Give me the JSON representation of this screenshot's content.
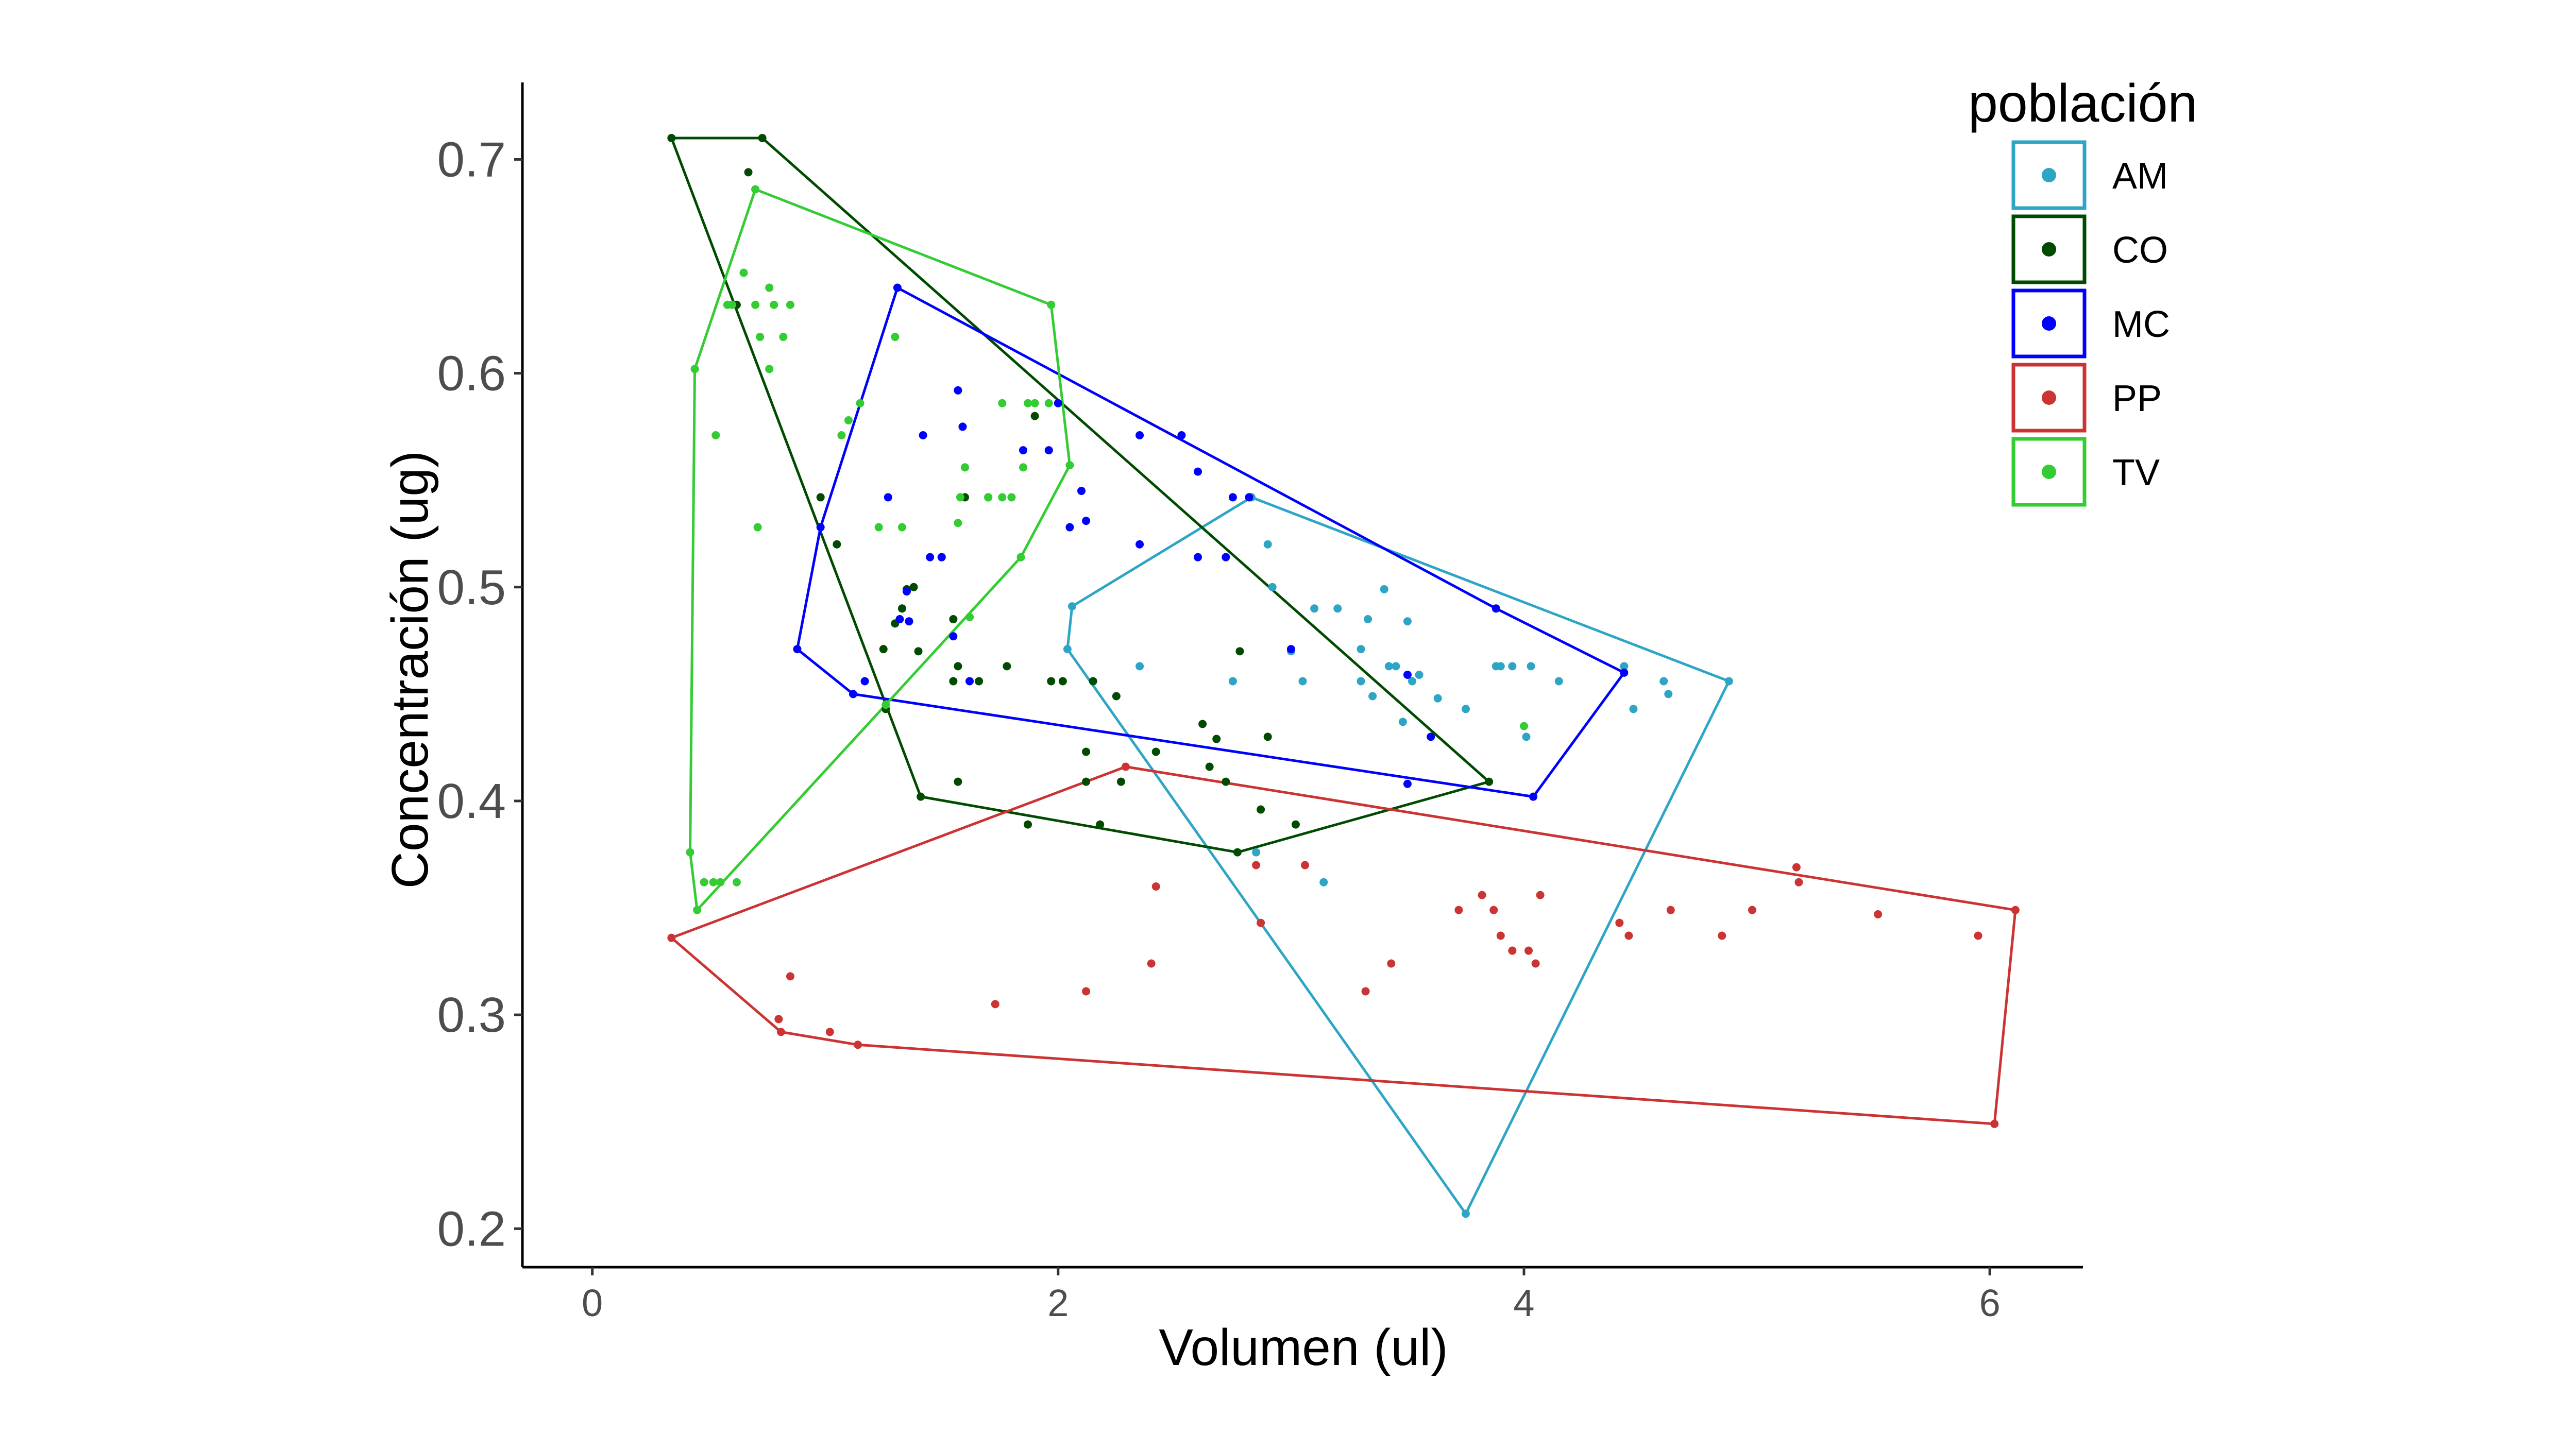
{
  "chart_data": {
    "type": "scatter",
    "xlabel": "Volumen (ul)",
    "ylabel": "Concentración (ug)",
    "xlim": [
      -0.3,
      6.4
    ],
    "ylim": [
      0.182,
      0.736
    ],
    "x_ticks": [
      0,
      2,
      4,
      6
    ],
    "x_tick_labels": [
      "0",
      "2",
      "4",
      "6"
    ],
    "y_ticks": [
      0.2,
      0.3,
      0.4,
      0.5,
      0.6,
      0.7
    ],
    "y_tick_labels": [
      "0.2",
      "0.3",
      "0.4",
      "0.5",
      "0.6",
      "0.7"
    ],
    "grid": false,
    "legend": {
      "title": "población",
      "position": "top-right"
    },
    "series": [
      {
        "name": "AM",
        "color": "#2fa5c6",
        "hull": [
          [
            3.75,
            0.207
          ],
          [
            4.88,
            0.456
          ],
          [
            2.83,
            0.542
          ],
          [
            2.06,
            0.491
          ],
          [
            2.04,
            0.471
          ]
        ],
        "points": [
          [
            3.75,
            0.207
          ],
          [
            4.88,
            0.456
          ],
          [
            2.83,
            0.542
          ],
          [
            2.06,
            0.491
          ],
          [
            2.04,
            0.471
          ],
          [
            2.9,
            0.52
          ],
          [
            2.92,
            0.5
          ],
          [
            3.1,
            0.49
          ],
          [
            3.2,
            0.49
          ],
          [
            3.4,
            0.499
          ],
          [
            3.33,
            0.485
          ],
          [
            3.5,
            0.484
          ],
          [
            3.42,
            0.463
          ],
          [
            3.45,
            0.463
          ],
          [
            3.52,
            0.456
          ],
          [
            3.55,
            0.459
          ],
          [
            3.63,
            0.448
          ],
          [
            3.75,
            0.443
          ],
          [
            3.9,
            0.463
          ],
          [
            3.95,
            0.463
          ],
          [
            4.03,
            0.463
          ],
          [
            3.3,
            0.471
          ],
          [
            3.3,
            0.456
          ],
          [
            3.35,
            0.449
          ],
          [
            3.48,
            0.437
          ],
          [
            4.43,
            0.463
          ],
          [
            4.47,
            0.443
          ],
          [
            4.6,
            0.456
          ],
          [
            4.62,
            0.45
          ],
          [
            4.01,
            0.43
          ],
          [
            2.75,
            0.456
          ],
          [
            2.35,
            0.463
          ],
          [
            3.05,
            0.456
          ],
          [
            3.0,
            0.47
          ],
          [
            2.85,
            0.376
          ],
          [
            3.14,
            0.362
          ],
          [
            3.88,
            0.463
          ],
          [
            4.15,
            0.456
          ]
        ]
      },
      {
        "name": "CO",
        "color": "#004b00",
        "hull": [
          [
            0.34,
            0.71
          ],
          [
            0.73,
            0.71
          ],
          [
            3.85,
            0.409
          ],
          [
            2.77,
            0.376
          ],
          [
            1.41,
            0.402
          ]
        ],
        "points": [
          [
            0.34,
            0.71
          ],
          [
            0.73,
            0.71
          ],
          [
            3.85,
            0.409
          ],
          [
            2.77,
            0.376
          ],
          [
            1.41,
            0.402
          ],
          [
            0.67,
            0.694
          ],
          [
            0.62,
            0.632
          ],
          [
            0.98,
            0.542
          ],
          [
            1.05,
            0.52
          ],
          [
            1.25,
            0.471
          ],
          [
            1.3,
            0.483
          ],
          [
            1.33,
            0.49
          ],
          [
            1.35,
            0.499
          ],
          [
            1.38,
            0.5
          ],
          [
            1.4,
            0.47
          ],
          [
            1.5,
            0.514
          ],
          [
            1.55,
            0.485
          ],
          [
            1.57,
            0.463
          ],
          [
            1.6,
            0.542
          ],
          [
            1.7,
            0.542
          ],
          [
            1.78,
            0.463
          ],
          [
            1.55,
            0.456
          ],
          [
            1.66,
            0.456
          ],
          [
            1.97,
            0.456
          ],
          [
            2.02,
            0.456
          ],
          [
            2.15,
            0.456
          ],
          [
            2.25,
            0.449
          ],
          [
            2.12,
            0.423
          ],
          [
            2.12,
            0.409
          ],
          [
            2.27,
            0.409
          ],
          [
            2.42,
            0.423
          ],
          [
            2.62,
            0.436
          ],
          [
            2.68,
            0.429
          ],
          [
            2.65,
            0.416
          ],
          [
            2.72,
            0.409
          ],
          [
            2.87,
            0.396
          ],
          [
            2.9,
            0.43
          ],
          [
            3.02,
            0.389
          ],
          [
            1.87,
            0.389
          ],
          [
            2.18,
            0.389
          ],
          [
            1.57,
            0.409
          ],
          [
            1.26,
            0.443
          ],
          [
            2.78,
            0.47
          ],
          [
            1.9,
            0.58
          ]
        ]
      },
      {
        "name": "MC",
        "color": "#0000ff",
        "hull": [
          [
            1.31,
            0.64
          ],
          [
            3.88,
            0.49
          ],
          [
            4.43,
            0.46
          ],
          [
            4.04,
            0.402
          ],
          [
            1.12,
            0.45
          ],
          [
            0.88,
            0.471
          ],
          [
            0.98,
            0.528
          ]
        ],
        "points": [
          [
            1.31,
            0.64
          ],
          [
            3.88,
            0.49
          ],
          [
            4.43,
            0.46
          ],
          [
            4.04,
            0.402
          ],
          [
            1.12,
            0.45
          ],
          [
            0.88,
            0.471
          ],
          [
            0.98,
            0.528
          ],
          [
            1.57,
            0.592
          ],
          [
            1.59,
            0.575
          ],
          [
            1.42,
            0.571
          ],
          [
            1.35,
            0.498
          ],
          [
            1.32,
            0.485
          ],
          [
            1.36,
            0.484
          ],
          [
            1.45,
            0.514
          ],
          [
            1.5,
            0.514
          ],
          [
            1.55,
            0.477
          ],
          [
            1.27,
            0.542
          ],
          [
            1.96,
            0.564
          ],
          [
            2.0,
            0.586
          ],
          [
            1.85,
            0.564
          ],
          [
            2.1,
            0.545
          ],
          [
            2.05,
            0.528
          ],
          [
            2.12,
            0.531
          ],
          [
            2.35,
            0.571
          ],
          [
            2.53,
            0.571
          ],
          [
            2.6,
            0.554
          ],
          [
            2.35,
            0.52
          ],
          [
            2.6,
            0.514
          ],
          [
            2.72,
            0.514
          ],
          [
            2.75,
            0.542
          ],
          [
            2.82,
            0.542
          ],
          [
            3.0,
            0.471
          ],
          [
            3.5,
            0.459
          ],
          [
            3.6,
            0.43
          ],
          [
            3.5,
            0.408
          ],
          [
            1.62,
            0.456
          ],
          [
            1.17,
            0.456
          ]
        ]
      },
      {
        "name": "PP",
        "color": "#cc3333",
        "hull": [
          [
            0.34,
            0.336
          ],
          [
            2.29,
            0.416
          ],
          [
            6.11,
            0.349
          ],
          [
            6.02,
            0.249
          ],
          [
            1.14,
            0.286
          ],
          [
            0.81,
            0.292
          ]
        ],
        "points": [
          [
            0.34,
            0.336
          ],
          [
            2.29,
            0.416
          ],
          [
            6.11,
            0.349
          ],
          [
            6.02,
            0.249
          ],
          [
            1.14,
            0.286
          ],
          [
            0.81,
            0.292
          ],
          [
            0.85,
            0.318
          ],
          [
            0.8,
            0.298
          ],
          [
            1.02,
            0.292
          ],
          [
            1.73,
            0.305
          ],
          [
            2.12,
            0.311
          ],
          [
            2.42,
            0.36
          ],
          [
            2.4,
            0.324
          ],
          [
            2.85,
            0.37
          ],
          [
            2.87,
            0.343
          ],
          [
            3.06,
            0.37
          ],
          [
            3.32,
            0.311
          ],
          [
            3.43,
            0.324
          ],
          [
            3.72,
            0.349
          ],
          [
            3.82,
            0.356
          ],
          [
            3.87,
            0.349
          ],
          [
            3.9,
            0.337
          ],
          [
            3.95,
            0.33
          ],
          [
            4.02,
            0.33
          ],
          [
            4.05,
            0.324
          ],
          [
            4.07,
            0.356
          ],
          [
            4.41,
            0.343
          ],
          [
            4.45,
            0.337
          ],
          [
            4.63,
            0.349
          ],
          [
            4.85,
            0.337
          ],
          [
            4.98,
            0.349
          ],
          [
            5.18,
            0.362
          ],
          [
            5.17,
            0.369
          ],
          [
            5.52,
            0.347
          ],
          [
            5.95,
            0.337
          ]
        ]
      },
      {
        "name": "TV",
        "color": "#33cc33",
        "hull": [
          [
            0.7,
            0.686
          ],
          [
            1.97,
            0.632
          ],
          [
            2.05,
            0.557
          ],
          [
            1.84,
            0.514
          ],
          [
            1.26,
            0.445
          ],
          [
            0.45,
            0.349
          ],
          [
            0.42,
            0.376
          ],
          [
            0.44,
            0.602
          ]
        ],
        "points": [
          [
            0.7,
            0.686
          ],
          [
            1.97,
            0.632
          ],
          [
            2.05,
            0.557
          ],
          [
            1.84,
            0.514
          ],
          [
            1.26,
            0.445
          ],
          [
            0.45,
            0.349
          ],
          [
            0.42,
            0.376
          ],
          [
            0.44,
            0.602
          ],
          [
            0.65,
            0.647
          ],
          [
            0.58,
            0.632
          ],
          [
            0.6,
            0.632
          ],
          [
            0.7,
            0.632
          ],
          [
            0.76,
            0.64
          ],
          [
            0.78,
            0.632
          ],
          [
            0.85,
            0.632
          ],
          [
            0.72,
            0.617
          ],
          [
            0.76,
            0.602
          ],
          [
            0.82,
            0.617
          ],
          [
            0.53,
            0.571
          ],
          [
            0.71,
            0.528
          ],
          [
            1.07,
            0.571
          ],
          [
            1.1,
            0.578
          ],
          [
            1.15,
            0.586
          ],
          [
            1.3,
            0.617
          ],
          [
            1.23,
            0.528
          ],
          [
            1.33,
            0.528
          ],
          [
            1.57,
            0.53
          ],
          [
            1.58,
            0.542
          ],
          [
            1.6,
            0.556
          ],
          [
            1.62,
            0.486
          ],
          [
            1.7,
            0.542
          ],
          [
            1.76,
            0.542
          ],
          [
            1.8,
            0.542
          ],
          [
            1.76,
            0.586
          ],
          [
            1.87,
            0.586
          ],
          [
            1.9,
            0.586
          ],
          [
            1.85,
            0.556
          ],
          [
            1.96,
            0.586
          ],
          [
            0.48,
            0.362
          ],
          [
            0.52,
            0.362
          ],
          [
            0.55,
            0.362
          ],
          [
            0.62,
            0.362
          ],
          [
            4.0,
            0.435
          ]
        ]
      }
    ]
  }
}
